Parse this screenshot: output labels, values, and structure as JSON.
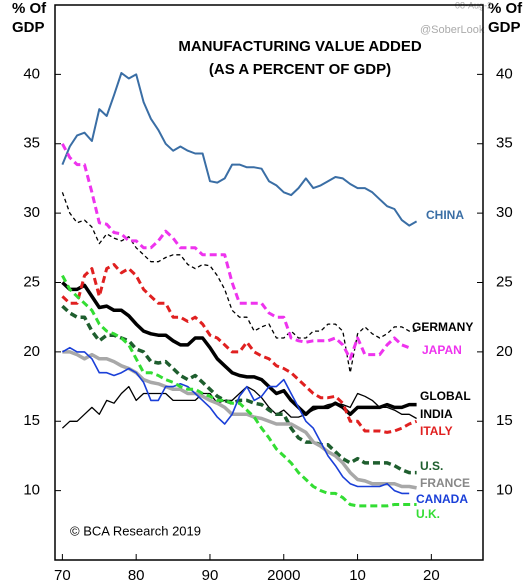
{
  "chart_data": {
    "type": "line",
    "title": "MANUFACTURING VALUE ADDED",
    "subtitle": "(AS A PERCENT OF GDP)",
    "ylabel": [
      "% Of",
      "GDP"
    ],
    "y2label": [
      "% Of",
      "GDP"
    ],
    "annotations": [
      "© BCA Research 2019",
      "@SoberLook",
      "08-Aug-2"
    ],
    "x": [
      1970,
      1971,
      1972,
      1973,
      1974,
      1975,
      1976,
      1977,
      1978,
      1979,
      1980,
      1981,
      1982,
      1983,
      1984,
      1985,
      1986,
      1987,
      1988,
      1989,
      1990,
      1991,
      1992,
      1993,
      1994,
      1995,
      1996,
      1997,
      1998,
      1999,
      2000,
      2001,
      2002,
      2003,
      2004,
      2005,
      2006,
      2007,
      2008,
      2009,
      2010,
      2011,
      2012,
      2013,
      2014,
      2015,
      2016,
      2017,
      2018
    ],
    "xlim": [
      1969,
      2027
    ],
    "xticks": [
      {
        "value": 1970,
        "label": "70"
      },
      {
        "value": 1980,
        "label": "80"
      },
      {
        "value": 1990,
        "label": "90"
      },
      {
        "value": 2000,
        "label": "2000"
      },
      {
        "value": 2010,
        "label": "10"
      },
      {
        "value": 2020,
        "label": "20"
      }
    ],
    "ylim": [
      5,
      45
    ],
    "yticks": [
      10,
      15,
      20,
      25,
      30,
      35,
      40
    ],
    "y2lim": [
      5,
      45
    ],
    "y2ticks": [
      10,
      15,
      20,
      25,
      30,
      35,
      40
    ],
    "grid": false,
    "series": [
      {
        "name": "CHINA",
        "color": "#3a6ea5",
        "width": 2,
        "dash": "none",
        "values": [
          33.5,
          34.8,
          35.6,
          35.8,
          35.2,
          37.5,
          37,
          38.5,
          40.1,
          39.7,
          40,
          38,
          36.8,
          36,
          35,
          34.5,
          34.8,
          34.5,
          34.3,
          34.3,
          32.3,
          32.2,
          32.5,
          33.5,
          33.5,
          33.3,
          33.3,
          33.2,
          32.3,
          32,
          31.5,
          31.3,
          31.8,
          32.5,
          31.8,
          32,
          32.3,
          32.6,
          32.5,
          32.1,
          31.8,
          31.8,
          31.5,
          31,
          30.5,
          30.3,
          29.5,
          29.1,
          29.4
        ]
      },
      {
        "name": "GERMANY",
        "color": "#000000",
        "width": 1.3,
        "dash": "4 3",
        "values": [
          31.5,
          30,
          29.3,
          29.5,
          29,
          27.8,
          28.5,
          28.2,
          28,
          28.3,
          27.5,
          27,
          26.5,
          26.5,
          26.8,
          27,
          27,
          26.3,
          26,
          26.3,
          26.2,
          25.5,
          24.5,
          23,
          22.5,
          22.5,
          21.5,
          21.8,
          22,
          21,
          21,
          21.5,
          21,
          21,
          21.5,
          21.5,
          22,
          22,
          21.5,
          18.5,
          21.3,
          21.8,
          21.3,
          21,
          21.3,
          21.8,
          21.8,
          21.5,
          21.5
        ]
      },
      {
        "name": "JAPAN",
        "color": "#ee33ee",
        "width": 3,
        "dash": "7 4",
        "values": [
          35,
          34,
          33.5,
          33.5,
          31.5,
          29.3,
          29.2,
          28.6,
          28.5,
          28,
          28,
          27.5,
          27.5,
          28,
          28.7,
          28.2,
          27.5,
          27.5,
          27.5,
          27,
          27,
          27,
          27,
          25,
          23.5,
          23.5,
          23.5,
          23.5,
          22.8,
          22.5,
          22.5,
          21,
          20.8,
          20.7,
          20.8,
          20.8,
          20.8,
          21,
          20.5,
          19.5,
          21,
          19.8,
          19.8,
          19.8,
          20.5,
          21,
          20.5,
          20.3,
          null
        ]
      },
      {
        "name": "GLOBAL",
        "color": "#000000",
        "width": 3.5,
        "dash": "none",
        "values": [
          25,
          24.5,
          24.5,
          24.8,
          24,
          23.2,
          23.3,
          23,
          23,
          22.6,
          22,
          21.5,
          21.3,
          21.2,
          21.2,
          20.8,
          20.5,
          20.5,
          21,
          21,
          20.3,
          19.5,
          19,
          18.5,
          18.3,
          18.2,
          18.2,
          18,
          17.5,
          17,
          17.2,
          16.5,
          16,
          15.5,
          16,
          16,
          16,
          16.3,
          16,
          15.5,
          16,
          16,
          16,
          16,
          16.2,
          16,
          16,
          16.2,
          16.2
        ]
      },
      {
        "name": "INDIA",
        "color": "#000000",
        "width": 1.3,
        "dash": "none",
        "values": [
          14.5,
          15,
          15,
          15.5,
          16,
          15.5,
          16.5,
          16.3,
          17,
          17.5,
          16.5,
          17,
          17,
          17,
          17,
          16.5,
          16.5,
          16.5,
          16.5,
          17,
          17,
          16.3,
          16.5,
          16.5,
          17,
          17.5,
          17.2,
          16.7,
          16,
          15.5,
          15.8,
          15.3,
          15.3,
          15.5,
          15.8,
          16,
          16.2,
          16.3,
          16.2,
          16,
          17,
          16.8,
          16.5,
          16,
          16,
          15.8,
          15.5,
          15.5,
          15.2
        ]
      },
      {
        "name": "ITALY",
        "color": "#e02020",
        "width": 3,
        "dash": "7 4",
        "values": [
          24,
          23.5,
          23.5,
          25.5,
          26,
          24,
          26,
          26.3,
          25.7,
          26,
          25.5,
          24.5,
          24,
          23.5,
          23.5,
          22.5,
          22.5,
          22.2,
          22.5,
          22,
          21.2,
          21,
          20.5,
          20,
          20,
          20.7,
          20,
          19.7,
          19.5,
          19,
          18.8,
          18.5,
          18,
          17.5,
          17,
          16.7,
          16.7,
          16.8,
          16.3,
          15,
          15,
          14.3,
          14.3,
          14.3,
          14.2,
          14.3,
          14.5,
          14.8,
          15
        ]
      },
      {
        "name": "U.S.",
        "color": "#1e5e2e",
        "width": 3.5,
        "dash": "7 4",
        "values": [
          23.3,
          22.8,
          22.5,
          22.5,
          21.5,
          20.8,
          21.2,
          21.2,
          21,
          20.8,
          20.2,
          20,
          19.3,
          19.2,
          19.3,
          18.8,
          18.3,
          18,
          18.3,
          17.8,
          17.3,
          16.8,
          16.5,
          16.3,
          16.5,
          16.5,
          16.3,
          16.2,
          15.8,
          15.5,
          15.5,
          14.5,
          13.8,
          13.5,
          13.5,
          13.3,
          13.3,
          12.8,
          12.3,
          12,
          12.3,
          12,
          12,
          12,
          12,
          11.8,
          11.5,
          11.3,
          11.3
        ]
      },
      {
        "name": "FRANCE",
        "color": "#a8a8a8",
        "width": 3.5,
        "dash": "none",
        "values": [
          20,
          20,
          19.8,
          19.5,
          19.8,
          19.5,
          19.5,
          19.3,
          19,
          18.8,
          18.5,
          18,
          17.8,
          17.7,
          17.5,
          17.3,
          17.3,
          17,
          17,
          16.8,
          16.5,
          16.3,
          16,
          15.5,
          15.5,
          15.5,
          15.3,
          15.2,
          15,
          14.8,
          14.8,
          14.8,
          14.5,
          14.2,
          13.5,
          13.2,
          12.8,
          12.5,
          12,
          11.3,
          10.8,
          10.7,
          10.5,
          10.5,
          10.5,
          10.5,
          10.3,
          10.3,
          10.2
        ]
      },
      {
        "name": "CANADA",
        "color": "#1a3fd8",
        "width": 1.6,
        "dash": "none",
        "values": [
          20,
          20.3,
          20,
          20,
          19.5,
          18.5,
          18.5,
          18.3,
          18.5,
          18.8,
          18.5,
          17.8,
          16.5,
          16.5,
          17.5,
          17.5,
          17.7,
          17.5,
          17,
          16.5,
          16,
          15.3,
          14.8,
          15.5,
          16.8,
          17.5,
          16.5,
          16.8,
          17.5,
          17.5,
          18,
          17,
          16,
          15,
          14.5,
          13.5,
          12.5,
          11.8,
          11,
          10.5,
          10.3,
          10.3,
          10.3,
          10.3,
          10.5,
          10,
          9.8,
          9.8,
          null
        ]
      },
      {
        "name": "U.K.",
        "color": "#33dd33",
        "width": 3,
        "dash": "7 4",
        "values": [
          25.5,
          24.5,
          24,
          23.5,
          23,
          22,
          21.5,
          21.3,
          21,
          20.5,
          19.5,
          18.5,
          18.5,
          18.3,
          18,
          17.8,
          17.5,
          17.3,
          17.3,
          17,
          16.8,
          16.5,
          16.5,
          16.3,
          16.3,
          15.8,
          15.3,
          14.5,
          13.8,
          13,
          12.5,
          12,
          11.3,
          10.8,
          10.3,
          10,
          9.8,
          9.8,
          9.5,
          9,
          8.9,
          8.9,
          8.9,
          8.9,
          8.9,
          9,
          9,
          9,
          9
        ]
      }
    ]
  }
}
